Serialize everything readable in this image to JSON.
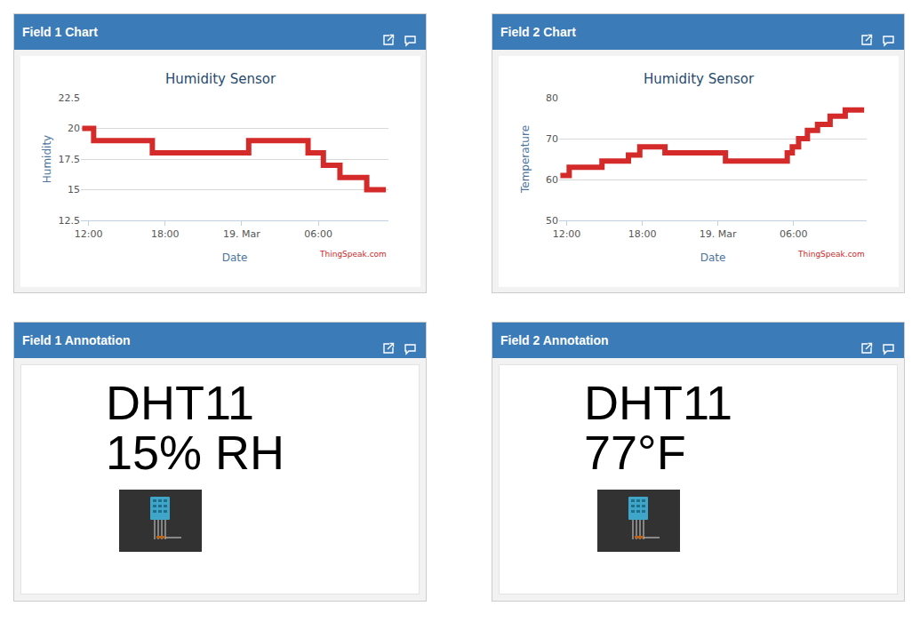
{
  "panels": {
    "charts": [
      "Field 1 Chart",
      "Field 2 Chart"
    ],
    "annotations": [
      {
        "title": "Field 1 Annotation",
        "lines": [
          "DHT11",
          "15% RH"
        ]
      },
      {
        "title": "Field 2 Annotation",
        "lines": [
          "DHT11",
          "77°F"
        ]
      }
    ]
  },
  "chart_data": [
    {
      "type": "line",
      "title": "Humidity Sensor",
      "xlabel": "Date",
      "ylabel": "Humidity",
      "x": [
        11.5,
        12.4,
        17.0,
        24.55,
        29.2,
        30.4,
        31.7,
        33.8,
        35.3
      ],
      "values": [
        20,
        19,
        18,
        19,
        18,
        17,
        16,
        15,
        15
      ],
      "color": "#d42a2a",
      "line_style": "step",
      "grid": true,
      "xlim": [
        11.4,
        35.5
      ],
      "xticks": [
        {
          "value": 12,
          "label": "12:00"
        },
        {
          "value": 18,
          "label": "18:00"
        },
        {
          "value": 24,
          "label": "19. Mar"
        },
        {
          "value": 30,
          "label": "06:00"
        }
      ],
      "ylim": [
        12.5,
        22.5
      ],
      "yticks": [
        12.5,
        15,
        17.5,
        20,
        22.5
      ],
      "annotations": [
        "ThingSpeak.com"
      ]
    },
    {
      "type": "line",
      "title": "Humidity Sensor",
      "xlabel": "Date",
      "ylabel": "Temperature",
      "x": [
        11.5,
        12.2,
        14.8,
        16.9,
        17.8,
        19.8,
        24.6,
        29.5,
        29.9,
        30.4,
        31.1,
        31.9,
        32.9,
        34.1,
        35.6
      ],
      "values": [
        61,
        63,
        64.5,
        66,
        68,
        66.5,
        64.5,
        66.5,
        68,
        70,
        72,
        73.5,
        75.5,
        77,
        77
      ],
      "color": "#d42a2a",
      "line_style": "step",
      "grid": true,
      "xlim": [
        11.4,
        35.8
      ],
      "xticks": [
        {
          "value": 12,
          "label": "12:00"
        },
        {
          "value": 18,
          "label": "18:00"
        },
        {
          "value": 24,
          "label": "19. Mar"
        },
        {
          "value": 30,
          "label": "06:00"
        }
      ],
      "ylim": [
        50,
        80
      ],
      "yticks": [
        50,
        60,
        70,
        80
      ],
      "annotations": [
        "ThingSpeak.com"
      ]
    }
  ]
}
